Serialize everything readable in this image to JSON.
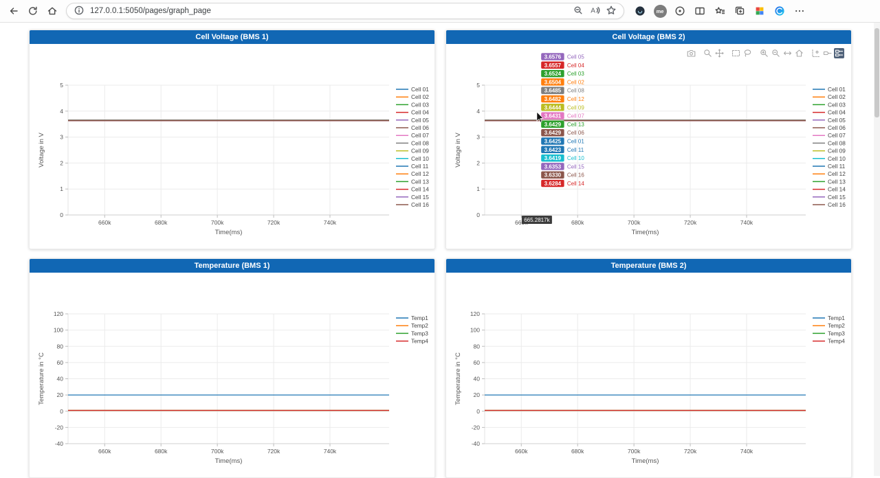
{
  "browser": {
    "url": "127.0.0.1:5050/pages/graph_page",
    "nav_left": [
      {
        "name": "back",
        "icon": "back"
      },
      {
        "name": "refresh",
        "icon": "refresh"
      },
      {
        "name": "home",
        "icon": "home"
      }
    ],
    "omnibox_left": [
      {
        "name": "site-info",
        "icon": "info"
      }
    ],
    "omnibox_right": [
      {
        "name": "zoom-out",
        "icon": "zoom-minus"
      },
      {
        "name": "read-aloud",
        "icon": "read-aloud"
      },
      {
        "name": "add-favorite",
        "icon": "star"
      }
    ],
    "toolbar_right": [
      {
        "name": "extension-dark",
        "icon": "ext-dark"
      },
      {
        "name": "profile",
        "icon": "profile",
        "label": "me"
      },
      {
        "name": "extension",
        "icon": "ext-circle"
      },
      {
        "name": "split-screen",
        "icon": "split"
      },
      {
        "name": "favorites-hub",
        "icon": "hub-star"
      },
      {
        "name": "collections",
        "icon": "collections"
      },
      {
        "name": "extension-colorful",
        "icon": "ext-colorful"
      },
      {
        "name": "copilot",
        "icon": "copilot"
      },
      {
        "name": "more-options",
        "icon": "more"
      }
    ],
    "profile_label": "me"
  },
  "modebar": {
    "active": "hover-compare",
    "buttons": [
      {
        "name": "download-plot",
        "icon": "camera"
      },
      {
        "name": "zoom",
        "icon": "zoom"
      },
      {
        "name": "pan",
        "icon": "pan"
      },
      {
        "name": "box-select",
        "icon": "box-select"
      },
      {
        "name": "lasso-select",
        "icon": "lasso"
      },
      {
        "name": "zoom-in",
        "icon": "zoom-in"
      },
      {
        "name": "zoom-out",
        "icon": "zoom-out"
      },
      {
        "name": "autoscale",
        "icon": "autoscale"
      },
      {
        "name": "reset-axes",
        "icon": "reset"
      },
      {
        "name": "toggle-spikelines",
        "icon": "spikes"
      },
      {
        "name": "hover-closest",
        "icon": "hover-closest"
      },
      {
        "name": "hover-compare",
        "icon": "hover-compare"
      }
    ]
  },
  "colors": {
    "header_blue": "#1167b4",
    "plotly_colorway": [
      "#1f77b4",
      "#ff7f0e",
      "#2ca02c",
      "#d62728",
      "#9467bd",
      "#8c564b",
      "#e377c2",
      "#7f7f7f",
      "#bcbd22",
      "#17becf"
    ]
  },
  "chart_data": [
    {
      "title": "Cell Voltage (BMS 1)",
      "type": "line",
      "xlabel": "Time(ms)",
      "ylabel": "Voltage in V",
      "xlim": [
        647,
        761
      ],
      "ylim": [
        0,
        5
      ],
      "xticks": {
        "values": [
          660,
          680,
          700,
          720,
          740
        ],
        "labels": [
          "660k",
          "680k",
          "700k",
          "720k",
          "740k"
        ]
      },
      "yticks": [
        0,
        1,
        2,
        3,
        4,
        5
      ],
      "legend_position": "right",
      "grid": true,
      "series": [
        {
          "name": "Cell 01",
          "value": 3.6425,
          "color": "#1f77b4"
        },
        {
          "name": "Cell 02",
          "value": 3.6504,
          "color": "#ff7f0e"
        },
        {
          "name": "Cell 03",
          "value": 3.6524,
          "color": "#2ca02c"
        },
        {
          "name": "Cell 04",
          "value": 3.6557,
          "color": "#d62728"
        },
        {
          "name": "Cell 05",
          "value": 3.6576,
          "color": "#9467bd"
        },
        {
          "name": "Cell 06",
          "value": 3.6429,
          "color": "#8c564b"
        },
        {
          "name": "Cell 07",
          "value": 3.6431,
          "color": "#e377c2"
        },
        {
          "name": "Cell 08",
          "value": 3.6485,
          "color": "#7f7f7f"
        },
        {
          "name": "Cell 09",
          "value": 3.6444,
          "color": "#bcbd22"
        },
        {
          "name": "Cell 10",
          "value": 3.6419,
          "color": "#17becf"
        },
        {
          "name": "Cell 11",
          "value": 3.6423,
          "color": "#1f77b4"
        },
        {
          "name": "Cell 12",
          "value": 3.6482,
          "color": "#ff7f0e"
        },
        {
          "name": "Cell 13",
          "value": 3.6429,
          "color": "#2ca02c"
        },
        {
          "name": "Cell 14",
          "value": 3.6284,
          "color": "#d62728"
        },
        {
          "name": "Cell 15",
          "value": 3.6353,
          "color": "#9467bd"
        },
        {
          "name": "Cell 16",
          "value": 3.633,
          "color": "#8c564b"
        }
      ]
    },
    {
      "title": "Cell Voltage (BMS 2)",
      "type": "line",
      "xlabel": "Time(ms)",
      "ylabel": "Voltage in V",
      "xlim": [
        647,
        761
      ],
      "ylim": [
        0,
        5
      ],
      "xticks": {
        "values": [
          660,
          680,
          700,
          720,
          740
        ],
        "labels": [
          "660k",
          "680k",
          "700k",
          "720k",
          "740k"
        ]
      },
      "yticks": [
        0,
        1,
        2,
        3,
        4,
        5
      ],
      "legend_position": "right",
      "grid": true,
      "series": [
        {
          "name": "Cell 01",
          "value": 3.6425,
          "color": "#1f77b4"
        },
        {
          "name": "Cell 02",
          "value": 3.6504,
          "color": "#ff7f0e"
        },
        {
          "name": "Cell 03",
          "value": 3.6524,
          "color": "#2ca02c"
        },
        {
          "name": "Cell 04",
          "value": 3.6557,
          "color": "#d62728"
        },
        {
          "name": "Cell 05",
          "value": 3.6576,
          "color": "#9467bd"
        },
        {
          "name": "Cell 06",
          "value": 3.6429,
          "color": "#8c564b"
        },
        {
          "name": "Cell 07",
          "value": 3.6431,
          "color": "#e377c2"
        },
        {
          "name": "Cell 08",
          "value": 3.6485,
          "color": "#7f7f7f"
        },
        {
          "name": "Cell 09",
          "value": 3.6444,
          "color": "#bcbd22"
        },
        {
          "name": "Cell 10",
          "value": 3.6419,
          "color": "#17becf"
        },
        {
          "name": "Cell 11",
          "value": 3.6423,
          "color": "#1f77b4"
        },
        {
          "name": "Cell 12",
          "value": 3.6482,
          "color": "#ff7f0e"
        },
        {
          "name": "Cell 13",
          "value": 3.6429,
          "color": "#2ca02c"
        },
        {
          "name": "Cell 14",
          "value": 3.6284,
          "color": "#d62728"
        },
        {
          "name": "Cell 15",
          "value": 3.6353,
          "color": "#9467bd"
        },
        {
          "name": "Cell 16",
          "value": 3.633,
          "color": "#8c564b"
        }
      ],
      "hover": {
        "x": 665.2817,
        "x_label": "665.2817k",
        "items": [
          {
            "value": "3.6576",
            "name": "Cell 05",
            "color": "#9467bd"
          },
          {
            "value": "3.6557",
            "name": "Cell 04",
            "color": "#d62728"
          },
          {
            "value": "3.6524",
            "name": "Cell 03",
            "color": "#2ca02c"
          },
          {
            "value": "3.6504",
            "name": "Cell 02",
            "color": "#ff7f0e"
          },
          {
            "value": "3.6485",
            "name": "Cell 08",
            "color": "#7f7f7f"
          },
          {
            "value": "3.6482",
            "name": "Cell 12",
            "color": "#ff7f0e"
          },
          {
            "value": "3.6444",
            "name": "Cell 09",
            "color": "#bcbd22"
          },
          {
            "value": "3.6431",
            "name": "Cell 07",
            "color": "#e377c2"
          },
          {
            "value": "3.6429",
            "name": "Cell 13",
            "color": "#2ca02c"
          },
          {
            "value": "3.6429",
            "name": "Cell 06",
            "color": "#8c564b"
          },
          {
            "value": "3.6425",
            "name": "Cell 01",
            "color": "#1f77b4"
          },
          {
            "value": "3.6423",
            "name": "Cell 11",
            "color": "#1f77b4"
          },
          {
            "value": "3.6419",
            "name": "Cell 10",
            "color": "#17becf"
          },
          {
            "value": "3.6353",
            "name": "Cell 15",
            "color": "#9467bd"
          },
          {
            "value": "3.6330",
            "name": "Cell 16",
            "color": "#8c564b"
          },
          {
            "value": "3.6284",
            "name": "Cell 14",
            "color": "#d62728"
          }
        ]
      }
    },
    {
      "title": "Temperature (BMS 1)",
      "type": "line",
      "xlabel": "Time(ms)",
      "ylabel": "Temperature in °C",
      "xlim": [
        647,
        761
      ],
      "ylim": [
        -40,
        120
      ],
      "xticks": {
        "values": [
          660,
          680,
          700,
          720,
          740
        ],
        "labels": [
          "660k",
          "680k",
          "700k",
          "720k",
          "740k"
        ]
      },
      "yticks": [
        -40,
        -20,
        0,
        20,
        40,
        60,
        80,
        100,
        120
      ],
      "legend_position": "right",
      "grid": true,
      "series": [
        {
          "name": "Temp1",
          "value": 20,
          "color": "#1f77b4"
        },
        {
          "name": "Temp2",
          "value": 1,
          "color": "#ff7f0e"
        },
        {
          "name": "Temp3",
          "value": 1,
          "color": "#2ca02c"
        },
        {
          "name": "Temp4",
          "value": 1,
          "color": "#d62728"
        }
      ]
    },
    {
      "title": "Temperature (BMS 2)",
      "type": "line",
      "xlabel": "Time(ms)",
      "ylabel": "Temperature in °C",
      "xlim": [
        647,
        761
      ],
      "ylim": [
        -40,
        120
      ],
      "xticks": {
        "values": [
          660,
          680,
          700,
          720,
          740
        ],
        "labels": [
          "660k",
          "680k",
          "700k",
          "720k",
          "740k"
        ]
      },
      "yticks": [
        -40,
        -20,
        0,
        20,
        40,
        60,
        80,
        100,
        120
      ],
      "legend_position": "right",
      "grid": true,
      "series": [
        {
          "name": "Temp1",
          "value": 20,
          "color": "#1f77b4"
        },
        {
          "name": "Temp2",
          "value": 1,
          "color": "#ff7f0e"
        },
        {
          "name": "Temp3",
          "value": 1,
          "color": "#2ca02c"
        },
        {
          "name": "Temp4",
          "value": 1,
          "color": "#d62728"
        }
      ]
    }
  ]
}
